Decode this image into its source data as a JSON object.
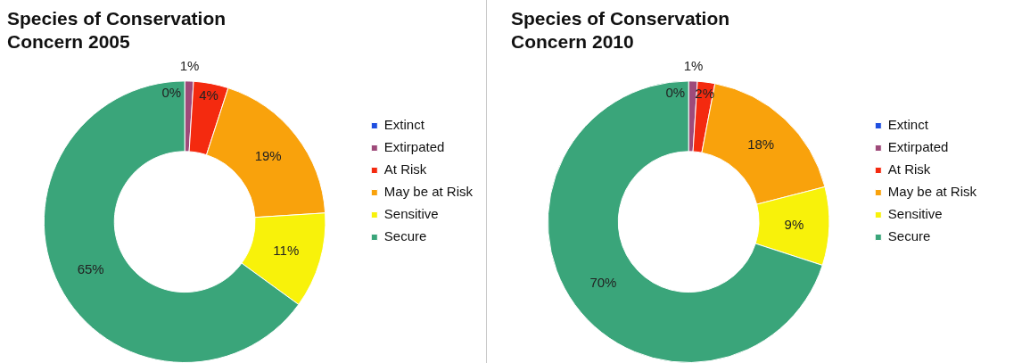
{
  "chart_data": [
    {
      "type": "donut",
      "title": "Species of Conservation Concern 2005",
      "categories": [
        "Extinct",
        "Extirpated",
        "At Risk",
        "May be at Risk",
        "Sensitive",
        "Secure"
      ],
      "values": [
        0,
        1,
        4,
        19,
        11,
        65
      ],
      "value_labels": [
        "0%",
        "1%",
        "4%",
        "19%",
        "11%",
        "65%"
      ],
      "colors": [
        "#1f4fe0",
        "#9e4a7a",
        "#f42a0f",
        "#f9a20c",
        "#f8f20a",
        "#3aa57a"
      ],
      "legend": "right"
    },
    {
      "type": "donut",
      "title": "Species of Conservation Concern 2010",
      "categories": [
        "Extinct",
        "Extirpated",
        "At Risk",
        "May be at Risk",
        "Sensitive",
        "Secure"
      ],
      "values": [
        0,
        1,
        2,
        18,
        9,
        70
      ],
      "value_labels": [
        "0%",
        "1%",
        "2%",
        "18%",
        "9%",
        "70%"
      ],
      "colors": [
        "#1f4fe0",
        "#9e4a7a",
        "#f42a0f",
        "#f9a20c",
        "#f8f20a",
        "#3aa57a"
      ],
      "legend": "right"
    }
  ]
}
